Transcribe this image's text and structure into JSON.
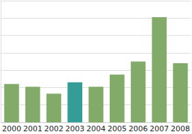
{
  "chart_data": {
    "type": "bar",
    "categories": [
      "2000",
      "2001",
      "2002",
      "2003",
      "2004",
      "2005",
      "2006",
      "2007",
      "2008"
    ],
    "values": [
      2.2,
      2.05,
      1.65,
      2.3,
      2.05,
      2.75,
      3.5,
      6.05,
      3.4
    ],
    "colors": [
      "#82ab6a",
      "#82ab6a",
      "#82ab6a",
      "#349e96",
      "#82ab6a",
      "#82ab6a",
      "#82ab6a",
      "#82ab6a",
      "#82ab6a"
    ],
    "ylim": [
      0,
      7
    ],
    "yticks": [
      0,
      1,
      2,
      3,
      4,
      5,
      6,
      7
    ],
    "grid": true,
    "tick_labels": "x"
  }
}
